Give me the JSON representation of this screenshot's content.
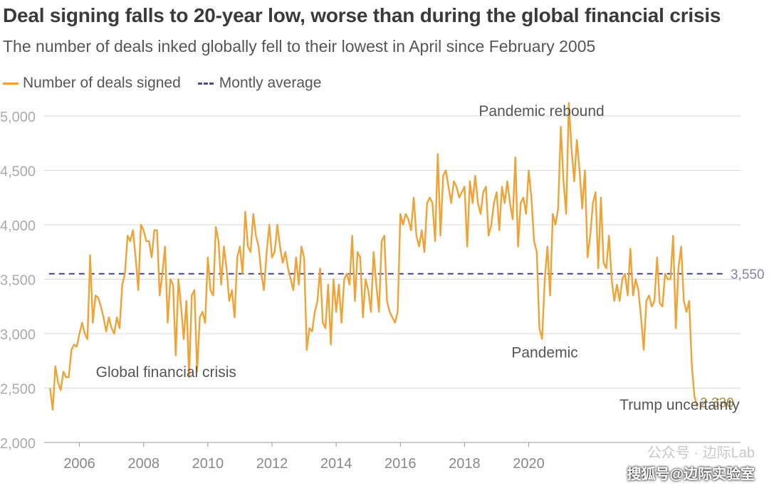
{
  "header": {
    "title": "Deal signing falls to 20-year low, worse than during the global financial crisis",
    "subtitle": "The number of deals inked globally fell to their lowest in April since February 2005"
  },
  "legend": {
    "series_label": "Number of deals signed",
    "average_label": "Montly average"
  },
  "watermark": {
    "line1": "公众号 · 边际Lab",
    "line2": "搜狐号@边际实验室"
  },
  "colors": {
    "series": "#f0a234",
    "average": "#4b4b8f",
    "grid": "#d9d9d9",
    "tick": "#aaaaaa"
  },
  "chart_data": {
    "type": "line",
    "xlabel": "",
    "ylabel": "",
    "ylim": [
      2000,
      5150
    ],
    "xlim": [
      2004.9,
      2026.6
    ],
    "yticks": [
      "2,000",
      "2,500",
      "3,000",
      "3,500",
      "4,000",
      "4,500",
      "5,000"
    ],
    "xticks": [
      "2006",
      "2008",
      "2010",
      "2012",
      "2014",
      "2016",
      "2018",
      "2020"
    ],
    "grid": true,
    "legend_position": "top-left",
    "average_value": 3550,
    "average_label_text": "3,550",
    "last_value_label": "2,330",
    "annotations": [
      {
        "text": "Pandemic rebound",
        "x": 2020.4,
        "y": 5000
      },
      {
        "text": "Global financial crisis",
        "x": 2008.7,
        "y": 2600
      },
      {
        "text": "Pandemic",
        "x": 2020.5,
        "y": 2780
      },
      {
        "text": "Trump uncertainty",
        "x": 2024.7,
        "y": 2300
      }
    ],
    "series": [
      {
        "name": "Number of deals signed",
        "x_start": 2005.0833,
        "x_step_months": 1,
        "values": [
          2500,
          2300,
          2700,
          2550,
          2480,
          2650,
          2600,
          2600,
          2850,
          2900,
          2880,
          3000,
          3100,
          3000,
          2950,
          3720,
          3100,
          3350,
          3330,
          3250,
          3150,
          3020,
          3150,
          3050,
          3000,
          3150,
          3050,
          3450,
          3550,
          3900,
          3850,
          3950,
          3700,
          3400,
          4000,
          3950,
          3850,
          3850,
          3700,
          3950,
          3950,
          3350,
          3550,
          3800,
          3100,
          3500,
          3450,
          2800,
          3500,
          3250,
          2950,
          3300,
          2600,
          3350,
          3400,
          2650,
          3150,
          3200,
          3100,
          3700,
          3400,
          3350,
          3980,
          3850,
          3450,
          3800,
          3600,
          3300,
          3400,
          3150,
          3700,
          3800,
          3550,
          4120,
          3800,
          3750,
          4100,
          3900,
          3800,
          3550,
          3400,
          3750,
          4000,
          3700,
          3750,
          4000,
          3800,
          3650,
          3750,
          3600,
          3500,
          3400,
          3700,
          3450,
          3800,
          3700,
          2850,
          3050,
          3020,
          3200,
          3300,
          3600,
          3100,
          3050,
          3450,
          2900,
          3500,
          3200,
          3450,
          3100,
          3500,
          3550,
          3450,
          3900,
          3300,
          3750,
          3700,
          3150,
          3500,
          3400,
          3200,
          3750,
          3450,
          3200,
          3850,
          3900,
          3300,
          3200,
          3150,
          3100,
          3200,
          4100,
          4000,
          4100,
          4050,
          3950,
          4250,
          3900,
          3800,
          3950,
          3750,
          4200,
          4250,
          4200,
          3850,
          4650,
          3900,
          4450,
          4500,
          4350,
          4200,
          4400,
          4350,
          4250,
          4300,
          4350,
          3800,
          4400,
          4200,
          4450,
          4200,
          4100,
          4300,
          4350,
          3900,
          4000,
          4200,
          4300,
          3950,
          4350,
          4200,
          4400,
          4200,
          4050,
          4620,
          3800,
          4200,
          4250,
          4100,
          4500,
          4250,
          3850,
          3750,
          3050,
          2950,
          3500,
          3800,
          3350,
          4100,
          4000,
          4150,
          4900,
          4400,
          4100,
          5120,
          4700,
          4400,
          4780,
          4500,
          4150,
          4500,
          3700,
          3900,
          4200,
          4300,
          3600,
          4250,
          3650,
          3600,
          3900,
          3500,
          3300,
          3450,
          3300,
          3500,
          3550,
          3350,
          3780,
          3350,
          3500,
          3400,
          3150,
          2850,
          3300,
          3350,
          3250,
          3300,
          3700,
          3280,
          3250,
          3550,
          3500,
          3500,
          3900,
          3050,
          3600,
          3800,
          3300,
          3200,
          3300,
          2700,
          2420,
          2330
        ]
      }
    ]
  }
}
